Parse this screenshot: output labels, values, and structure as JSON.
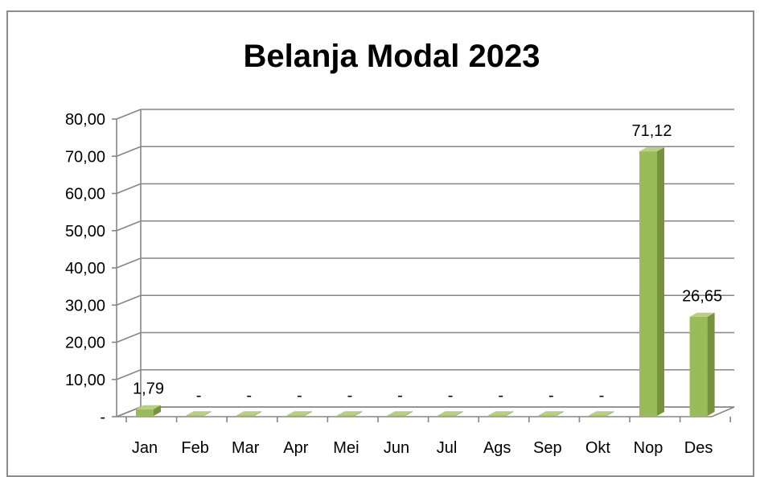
{
  "chart_data": {
    "type": "bar",
    "title": "Belanja Modal 2023",
    "xlabel": "",
    "ylabel": "",
    "categories": [
      "Jan",
      "Feb",
      "Mar",
      "Apr",
      "Mei",
      "Jun",
      "Jul",
      "Ags",
      "Sep",
      "Okt",
      "Nop",
      "Des"
    ],
    "values": [
      1.79,
      0,
      0,
      0,
      0,
      0,
      0,
      0,
      0,
      0,
      71.12,
      26.65
    ],
    "data_labels": [
      "1,79",
      "-",
      "-",
      "-",
      "-",
      "-",
      "-",
      "-",
      "-",
      "-",
      "71,12",
      "26,65"
    ],
    "ylim": [
      0,
      80
    ],
    "y_ticks": [
      0,
      10,
      20,
      30,
      40,
      50,
      60,
      70,
      80
    ],
    "y_tick_labels": [
      "-",
      "10,00",
      "20,00",
      "30,00",
      "40,00",
      "50,00",
      "60,00",
      "70,00",
      "80,00"
    ],
    "grid": true,
    "legend": "none",
    "style": "3d-column",
    "colors": {
      "bar_front": "#9bbb59",
      "bar_side": "#76923c",
      "bar_top": "#b8d07f",
      "grid": "#868686",
      "frame": "#8c8c8c"
    }
  }
}
